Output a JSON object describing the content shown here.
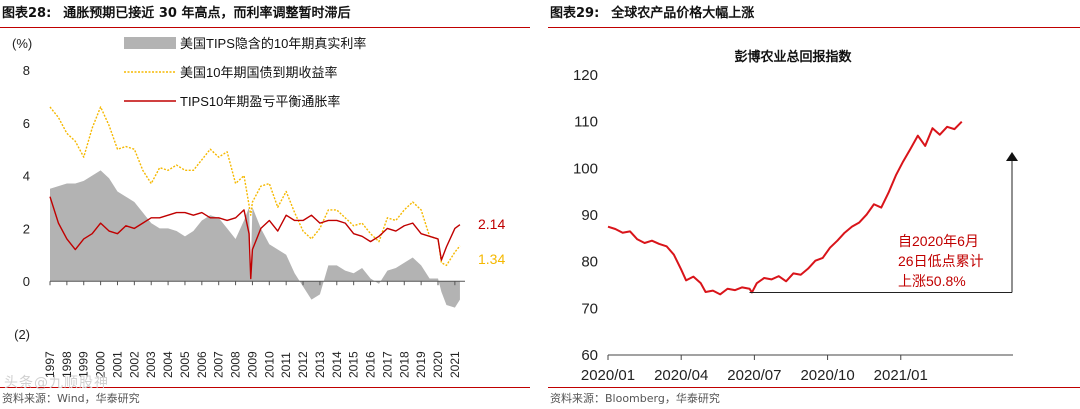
{
  "left": {
    "title_num": "图表28:",
    "title_text": "通胀预期已接近 30 年高点，而利率调整暂时滞后",
    "source": "资料来源：Wind，华泰研究",
    "watermark": "头条@九顺股神",
    "colors": {
      "area": "#b3b3b3",
      "yield": "#f5b800",
      "breakeven": "#c00000"
    }
  },
  "right": {
    "title_num": "图表29:",
    "title_text": "全球农产品价格大幅上涨",
    "source": "资料来源：Bloomberg，华泰研究",
    "colors": {
      "line": "#d9141a"
    }
  },
  "chart_data": [
    {
      "type": "area",
      "title": "",
      "ylabel": "(%)",
      "ylim": [
        -2,
        8
      ],
      "yticks": [
        "8",
        "6",
        "4",
        "2",
        "0",
        "(2)"
      ],
      "ytick_values": [
        8,
        6,
        4,
        2,
        0,
        -2
      ],
      "xlim": [
        1997,
        2021.6
      ],
      "categories": [
        "1997",
        "1998",
        "1999",
        "2000",
        "2001",
        "2002",
        "2003",
        "2004",
        "2005",
        "2006",
        "2007",
        "2008",
        "2009",
        "2010",
        "2011",
        "2012",
        "2013",
        "2014",
        "2015",
        "2016",
        "2017",
        "2018",
        "2019",
        "2020",
        "2021"
      ],
      "legend": [
        "美国TIPS隐含的10年期真实利率",
        "美国10年期国债到期收益率",
        "TIPS10年期盈亏平衡通胀率"
      ],
      "end_labels": [
        "2.14",
        "1.34"
      ],
      "series": [
        {
          "name": "美国TIPS隐含的10年期真实利率",
          "kind": "area",
          "x": [
            1997,
            1997.5,
            1998,
            1998.5,
            1999,
            1999.5,
            2000,
            2000.5,
            2001,
            2001.5,
            2002,
            2002.5,
            2003,
            2003.5,
            2004,
            2004.5,
            2005,
            2005.5,
            2006,
            2006.5,
            2007,
            2007.5,
            2008,
            2008.5,
            2008.8,
            2008.9,
            2009,
            2009.5,
            2010,
            2010.5,
            2011,
            2011.5,
            2012,
            2012.5,
            2013,
            2013.5,
            2014,
            2014.5,
            2015,
            2015.5,
            2016,
            2016.5,
            2017,
            2017.5,
            2018,
            2018.5,
            2019,
            2019.5,
            2020,
            2020.2,
            2020.5,
            2021,
            2021.3
          ],
          "values": [
            3.5,
            3.6,
            3.7,
            3.7,
            3.8,
            4.0,
            4.2,
            3.9,
            3.4,
            3.2,
            3.0,
            2.6,
            2.2,
            2.0,
            2.0,
            1.9,
            1.7,
            1.9,
            2.3,
            2.5,
            2.4,
            2.0,
            1.6,
            2.3,
            2.8,
            0.5,
            2.8,
            2.0,
            1.4,
            1.2,
            1.0,
            0.3,
            -0.2,
            -0.7,
            -0.5,
            0.6,
            0.6,
            0.4,
            0.3,
            0.5,
            0.1,
            -0.1,
            0.4,
            0.5,
            0.7,
            0.9,
            0.6,
            0.1,
            0.1,
            -0.4,
            -0.9,
            -1.0,
            -0.7
          ]
        },
        {
          "name": "美国10年期国债到期收益率",
          "kind": "line",
          "x": [
            1997,
            1997.5,
            1998,
            1998.5,
            1999,
            1999.5,
            2000,
            2000.5,
            2001,
            2001.5,
            2002,
            2002.5,
            2003,
            2003.5,
            2004,
            2004.5,
            2005,
            2005.5,
            2006,
            2006.5,
            2007,
            2007.5,
            2008,
            2008.5,
            2008.9,
            2009,
            2009.5,
            2010,
            2010.5,
            2011,
            2011.5,
            2012,
            2012.5,
            2013,
            2013.5,
            2014,
            2014.5,
            2015,
            2015.5,
            2016,
            2016.5,
            2017,
            2017.5,
            2018,
            2018.5,
            2019,
            2019.5,
            2020,
            2020.2,
            2020.5,
            2021,
            2021.3
          ],
          "values": [
            6.6,
            6.2,
            5.6,
            5.3,
            4.7,
            5.8,
            6.6,
            5.9,
            5.0,
            5.1,
            5.0,
            4.2,
            3.7,
            4.3,
            4.2,
            4.4,
            4.2,
            4.2,
            4.6,
            5.0,
            4.7,
            4.9,
            3.7,
            4.0,
            2.5,
            3.0,
            3.6,
            3.7,
            2.8,
            3.4,
            2.6,
            1.9,
            1.6,
            2.0,
            2.7,
            2.7,
            2.4,
            2.1,
            2.2,
            1.8,
            1.5,
            2.4,
            2.3,
            2.7,
            3.0,
            2.7,
            1.7,
            1.6,
            0.7,
            0.6,
            1.1,
            1.34
          ]
        },
        {
          "name": "TIPS10年期盈亏平衡通胀率",
          "kind": "line",
          "x": [
            1997,
            1997.5,
            1998,
            1998.5,
            1999,
            1999.5,
            2000,
            2000.5,
            2001,
            2001.5,
            2002,
            2002.5,
            2003,
            2003.5,
            2004,
            2004.5,
            2005,
            2005.5,
            2006,
            2006.5,
            2007,
            2007.5,
            2008,
            2008.5,
            2008.8,
            2008.9,
            2009,
            2009.5,
            2010,
            2010.5,
            2011,
            2011.5,
            2012,
            2012.5,
            2013,
            2013.5,
            2014,
            2014.5,
            2015,
            2015.5,
            2016,
            2016.5,
            2017,
            2017.5,
            2018,
            2018.5,
            2019,
            2019.5,
            2020,
            2020.2,
            2020.5,
            2021,
            2021.3
          ],
          "values": [
            3.2,
            2.2,
            1.6,
            1.2,
            1.6,
            1.8,
            2.2,
            1.9,
            1.8,
            2.1,
            2.0,
            2.2,
            2.4,
            2.4,
            2.5,
            2.6,
            2.6,
            2.5,
            2.6,
            2.4,
            2.4,
            2.3,
            2.4,
            2.7,
            1.8,
            0.1,
            1.2,
            2.0,
            2.3,
            1.9,
            2.5,
            2.3,
            2.3,
            2.5,
            2.2,
            2.3,
            2.3,
            2.2,
            1.8,
            1.7,
            1.5,
            1.7,
            2.0,
            1.9,
            2.1,
            2.2,
            1.8,
            1.7,
            1.6,
            0.8,
            1.3,
            2.0,
            2.14
          ]
        }
      ]
    },
    {
      "type": "line",
      "title": "彭博农业总回报指数",
      "ylim": [
        60,
        120
      ],
      "yticks": [
        "120",
        "110",
        "100",
        "90",
        "80",
        "70",
        "60"
      ],
      "ytick_values": [
        120,
        110,
        100,
        90,
        80,
        70,
        60
      ],
      "xlim": [
        0,
        16.6
      ],
      "xticks": [
        "2020/01",
        "2020/04",
        "2020/07",
        "2020/10",
        "2021/01"
      ],
      "xtick_values": [
        0,
        3,
        6,
        9,
        12
      ],
      "annotation": "自2020年6月\n26日低点累计\n上涨50.8%",
      "series": [
        {
          "name": "彭博农业总回报指数",
          "x": [
            0,
            0.3,
            0.6,
            0.9,
            1.2,
            1.5,
            1.8,
            2.1,
            2.4,
            2.7,
            3.0,
            3.2,
            3.5,
            3.8,
            4.0,
            4.3,
            4.6,
            4.9,
            5.2,
            5.5,
            5.8,
            5.9,
            6.1,
            6.4,
            6.7,
            7.0,
            7.3,
            7.6,
            7.9,
            8.2,
            8.5,
            8.8,
            9.1,
            9.4,
            9.7,
            10.0,
            10.3,
            10.6,
            10.9,
            11.2,
            11.5,
            11.8,
            12.1,
            12.4,
            12.7,
            13.0,
            13.3,
            13.6,
            13.9,
            14.2,
            14.5
          ],
          "values": [
            87.5,
            87.0,
            86.2,
            86.5,
            84.8,
            84.0,
            84.5,
            83.8,
            83.3,
            81.5,
            78.3,
            76.0,
            76.8,
            75.4,
            73.5,
            73.8,
            73.0,
            74.2,
            73.9,
            74.5,
            74.2,
            73.4,
            75.4,
            76.5,
            76.2,
            76.9,
            75.8,
            77.5,
            77.2,
            78.5,
            80.2,
            80.8,
            83.0,
            84.5,
            86.2,
            87.5,
            88.4,
            90.1,
            92.3,
            91.6,
            94.8,
            98.5,
            101.5,
            104.2,
            107.0,
            104.8,
            108.6,
            107.2,
            108.9,
            108.4,
            110.0
          ]
        }
      ]
    }
  ]
}
